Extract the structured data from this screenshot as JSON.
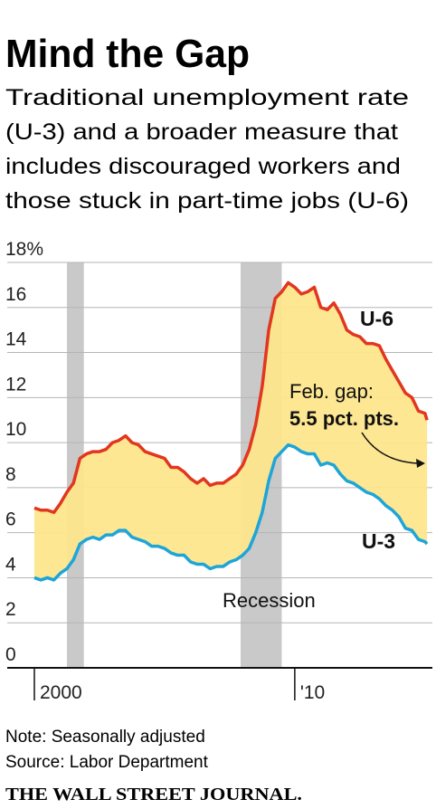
{
  "chart_data": {
    "type": "line",
    "title": "Mind the Gap",
    "subtitle": [
      "Traditional unemployment rate",
      "(U-3) and a broader measure that",
      "includes discouraged workers and",
      "those stuck in part-time jobs (U-6)"
    ],
    "x": [
      2000,
      2000.25,
      2000.5,
      2000.75,
      2001,
      2001.25,
      2001.5,
      2001.75,
      2002,
      2002.25,
      2002.5,
      2002.75,
      2003,
      2003.25,
      2003.5,
      2003.75,
      2004,
      2004.25,
      2004.5,
      2004.75,
      2005,
      2005.25,
      2005.5,
      2005.75,
      2006,
      2006.25,
      2006.5,
      2006.75,
      2007,
      2007.25,
      2007.5,
      2007.75,
      2008,
      2008.25,
      2008.5,
      2008.75,
      2009,
      2009.25,
      2009.5,
      2009.75,
      2010,
      2010.25,
      2010.5,
      2010.75,
      2011,
      2011.25,
      2011.5,
      2011.75,
      2012,
      2012.25,
      2012.5,
      2012.75,
      2013,
      2013.25,
      2013.5,
      2013.75,
      2014,
      2014.25,
      2014.5,
      2014.75,
      2015,
      2015.08
    ],
    "series": [
      {
        "name": "U-6",
        "color": "#e2361f",
        "values": [
          7.1,
          7.0,
          7.0,
          6.9,
          7.3,
          7.8,
          8.2,
          9.3,
          9.5,
          9.6,
          9.6,
          9.7,
          10.0,
          10.1,
          10.3,
          10.0,
          9.9,
          9.6,
          9.5,
          9.4,
          9.3,
          8.9,
          8.9,
          8.7,
          8.4,
          8.2,
          8.4,
          8.1,
          8.2,
          8.2,
          8.4,
          8.6,
          9.0,
          9.7,
          10.8,
          12.5,
          15.0,
          16.4,
          16.7,
          17.1,
          16.9,
          16.6,
          16.7,
          16.9,
          16.0,
          15.9,
          16.2,
          15.7,
          15.0,
          14.8,
          14.7,
          14.4,
          14.4,
          14.3,
          13.7,
          13.2,
          12.7,
          12.2,
          12.0,
          11.4,
          11.3,
          11.0
        ]
      },
      {
        "name": "U-3",
        "color": "#1ea5d8",
        "values": [
          4.0,
          3.9,
          4.0,
          3.9,
          4.2,
          4.4,
          4.8,
          5.5,
          5.7,
          5.8,
          5.7,
          5.9,
          5.9,
          6.1,
          6.1,
          5.8,
          5.7,
          5.6,
          5.4,
          5.4,
          5.3,
          5.1,
          5.0,
          5.0,
          4.7,
          4.6,
          4.6,
          4.4,
          4.5,
          4.5,
          4.7,
          4.8,
          5.0,
          5.3,
          6.0,
          6.9,
          8.3,
          9.3,
          9.6,
          9.9,
          9.8,
          9.6,
          9.5,
          9.5,
          9.0,
          9.1,
          9.0,
          8.6,
          8.3,
          8.2,
          8.0,
          7.8,
          7.7,
          7.5,
          7.2,
          7.0,
          6.7,
          6.2,
          6.1,
          5.7,
          5.6,
          5.5
        ]
      }
    ],
    "gap_color": "#fde68c",
    "recessions": [
      [
        2001.25,
        2001.9
      ],
      [
        2007.92,
        2009.5
      ]
    ],
    "recession_color": "#c9c9c9",
    "recession_label": "Recession",
    "annotations": [
      "Feb. gap:",
      "5.5 pct. pts."
    ],
    "xlim": [
      1998.958,
      2015.285
    ],
    "xticks": [
      2000,
      {
        "value": 2010,
        "label": "'10"
      }
    ],
    "ylim": [
      0,
      18
    ],
    "yticks": [
      0,
      2,
      4,
      6,
      8,
      10,
      12,
      14,
      16,
      {
        "value": 18,
        "label": "18%"
      }
    ],
    "grid": true,
    "note": "Note: Seasonally adjusted",
    "source": "Source: Labor Department",
    "publisher": "THE WALL STREET JOURNAL."
  }
}
